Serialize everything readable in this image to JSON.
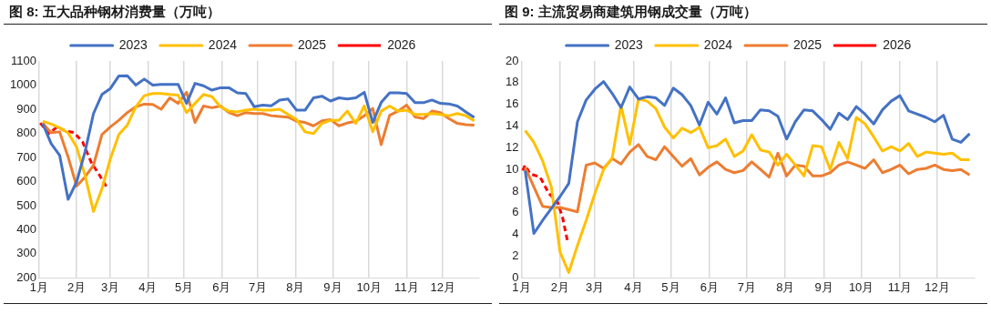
{
  "chart_data": [
    {
      "type": "line",
      "title": "图 8:  五大品种钢材消费量（万吨）",
      "x": [
        "--01-04",
        "--01-11",
        "--01-18",
        "--01-25",
        "--02-01",
        "--02-08",
        "--02-15",
        "--02-22",
        "--03-01",
        "--03-08",
        "--03-15",
        "--03-22",
        "--03-29",
        "--04-05",
        "--04-12",
        "--04-19",
        "--04-26",
        "--05-03",
        "--05-10",
        "--05-17",
        "--05-24",
        "--05-31",
        "--06-07",
        "--06-14",
        "--06-21",
        "--06-28",
        "--07-05",
        "--07-12",
        "--07-19",
        "--07-26",
        "--08-02",
        "--08-09",
        "--08-16",
        "--08-23",
        "--08-30",
        "--09-06",
        "--09-13",
        "--09-20",
        "--09-27",
        "--10-04",
        "--10-11",
        "--10-18",
        "--10-25",
        "--11-01",
        "--11-08",
        "--11-15",
        "--11-22",
        "--11-29",
        "--12-06",
        "--12-13",
        "--12-20",
        "--12-27"
      ],
      "series": [
        {
          "name": "2023",
          "color": "#4472c4",
          "values": [
            840,
            757,
            709,
            526,
            598,
            723,
            882,
            961,
            986,
            1038,
            1039,
            1000,
            1025,
            1000,
            1003,
            1003,
            1003,
            924,
            1007,
            997,
            979,
            989,
            989,
            968,
            965,
            910,
            917,
            914,
            938,
            942,
            896,
            896,
            947,
            954,
            934,
            947,
            942,
            947,
            970,
            845,
            928,
            968,
            968,
            965,
            927,
            927,
            938,
            924,
            922,
            913,
            889,
            866
          ]
        },
        {
          "name": "2024",
          "color": "#ffc000",
          "values": [
            850,
            838,
            823,
            802,
            743,
            626,
            476,
            570,
            695,
            795,
            834,
            910,
            956,
            965,
            965,
            961,
            958,
            886,
            924,
            961,
            952,
            910,
            892,
            889,
            896,
            900,
            896,
            896,
            900,
            878,
            857,
            806,
            799,
            841,
            854,
            854,
            892,
            841,
            914,
            806,
            892,
            913,
            892,
            896,
            878,
            878,
            882,
            878,
            873,
            882,
            873,
            852
          ]
        },
        {
          "name": "2025",
          "color": "#ed7d31",
          "values": [
            841,
            803,
            806,
            702,
            581,
            619,
            667,
            795,
            827,
            854,
            886,
            910,
            921,
            920,
            900,
            947,
            924,
            970,
            845,
            913,
            906,
            913,
            886,
            873,
            886,
            882,
            882,
            873,
            870,
            867,
            850,
            845,
            831,
            852,
            857,
            831,
            843,
            850,
            873,
            903,
            753,
            875,
            892,
            917,
            868,
            861,
            892,
            886,
            861,
            841,
            836,
            834
          ]
        },
        {
          "name": "2026",
          "color": "#ff0000",
          "line_style": "dashed",
          "x": [
            "--01-02",
            "--01-09",
            "--01-16",
            "--01-23",
            "--01-30",
            "--02-06",
            "--02-13",
            "--02-20",
            "--02-27"
          ],
          "values": [
            843,
            799,
            827,
            809,
            803,
            764,
            681,
            626,
            567
          ]
        }
      ],
      "xlim": [
        "--01-01",
        "--12-31"
      ],
      "xticks": [
        {
          "value": "--01-01",
          "label": "1月"
        },
        {
          "value": "--02-01",
          "label": "2月"
        },
        {
          "value": "--03-01",
          "label": "3月"
        },
        {
          "value": "--04-01",
          "label": "4月"
        },
        {
          "value": "--05-01",
          "label": "5月"
        },
        {
          "value": "--06-01",
          "label": "6月"
        },
        {
          "value": "--07-01",
          "label": "7月"
        },
        {
          "value": "--08-01",
          "label": "8月"
        },
        {
          "value": "--09-01",
          "label": "9月"
        },
        {
          "value": "--10-01",
          "label": "10月"
        },
        {
          "value": "--11-01",
          "label": "11月"
        },
        {
          "value": "--12-01",
          "label": "12月"
        }
      ],
      "ylim": [
        200,
        1100
      ],
      "yticks": [
        200,
        300,
        400,
        500,
        600,
        700,
        800,
        900,
        1000,
        1100
      ],
      "grid": "x",
      "legend": "top",
      "marker": "none",
      "line_style": "solid"
    },
    {
      "type": "line",
      "title": "图 9:  主流贸易商建筑用钢成交量（万吨）",
      "x": [
        "--01-04",
        "--01-11",
        "--01-18",
        "--01-25",
        "--02-01",
        "--02-08",
        "--02-15",
        "--02-22",
        "--03-01",
        "--03-08",
        "--03-15",
        "--03-22",
        "--03-29",
        "--04-05",
        "--04-12",
        "--04-19",
        "--04-26",
        "--05-03",
        "--05-10",
        "--05-17",
        "--05-24",
        "--05-31",
        "--06-07",
        "--06-14",
        "--06-21",
        "--06-28",
        "--07-05",
        "--07-12",
        "--07-19",
        "--07-26",
        "--08-02",
        "--08-09",
        "--08-16",
        "--08-23",
        "--08-30",
        "--09-06",
        "--09-13",
        "--09-20",
        "--09-27",
        "--10-04",
        "--10-11",
        "--10-18",
        "--10-25",
        "--11-01",
        "--11-08",
        "--11-15",
        "--11-22",
        "--11-29",
        "--12-06",
        "--12-13",
        "--12-20",
        "--12-27"
      ],
      "series": [
        {
          "name": "2023",
          "color": "#4472c4",
          "values": [
            9.9,
            4.1,
            5.3,
            6.4,
            7.5,
            8.7,
            14.4,
            16.4,
            17.4,
            18.1,
            17.0,
            15.7,
            17.6,
            16.5,
            16.7,
            16.6,
            15.9,
            17.5,
            16.9,
            15.9,
            14.1,
            16.2,
            15.1,
            16.6,
            14.3,
            14.5,
            14.5,
            15.5,
            15.4,
            14.9,
            12.8,
            14.4,
            15.5,
            15.4,
            14.6,
            13.7,
            15.2,
            14.6,
            15.8,
            15.1,
            14.2,
            15.5,
            16.3,
            16.8,
            15.4,
            15.1,
            14.8,
            14.4,
            15.0,
            12.8,
            12.5,
            13.3
          ]
        },
        {
          "name": "2024",
          "color": "#ffc000",
          "values": [
            13.6,
            12.5,
            10.8,
            8.4,
            2.4,
            0.5,
            3.0,
            5.3,
            7.8,
            10.0,
            11.1,
            15.9,
            12.3,
            16.5,
            16.3,
            15.6,
            13.9,
            12.9,
            13.8,
            13.4,
            13.9,
            12.0,
            12.2,
            12.8,
            11.2,
            11.7,
            13.2,
            11.8,
            11.6,
            10.4,
            11.4,
            10.4,
            9.4,
            12.2,
            12.1,
            10.0,
            12.5,
            11.0,
            14.8,
            14.2,
            13.0,
            11.7,
            12.1,
            11.7,
            12.4,
            11.2,
            11.6,
            11.5,
            11.4,
            11.5,
            10.9,
            10.9
          ]
        },
        {
          "name": "2025",
          "color": "#ed7d31",
          "values": [
            10.2,
            8.4,
            6.6,
            6.5,
            6.5,
            6.3,
            6.1,
            10.4,
            10.6,
            10.1,
            11.0,
            10.5,
            11.6,
            12.3,
            11.2,
            10.9,
            12.1,
            11.2,
            10.3,
            11.0,
            9.5,
            10.2,
            10.7,
            10.0,
            9.7,
            9.9,
            10.7,
            10.0,
            9.3,
            11.5,
            9.4,
            10.4,
            10.3,
            9.4,
            9.4,
            9.7,
            10.4,
            10.7,
            10.4,
            10.1,
            10.9,
            9.7,
            10.0,
            10.4,
            9.6,
            10.0,
            10.1,
            10.4,
            10.0,
            9.9,
            10.0,
            9.5
          ]
        },
        {
          "name": "2026",
          "color": "#ff0000",
          "line_style": "dashed",
          "x": [
            "--01-02",
            "--01-04",
            "--01-08",
            "--01-16",
            "--01-23",
            "--01-30",
            "--02-03",
            "--02-07"
          ],
          "values": [
            9.9,
            10.4,
            9.6,
            9.3,
            7.8,
            7.0,
            5.6,
            3.4
          ]
        }
      ],
      "xlim": [
        "--01-01",
        "--12-31"
      ],
      "xticks": [
        {
          "value": "--01-01",
          "label": "1月"
        },
        {
          "value": "--02-01",
          "label": "2月"
        },
        {
          "value": "--03-01",
          "label": "3月"
        },
        {
          "value": "--04-01",
          "label": "4月"
        },
        {
          "value": "--05-01",
          "label": "5月"
        },
        {
          "value": "--06-01",
          "label": "6月"
        },
        {
          "value": "--07-01",
          "label": "7月"
        },
        {
          "value": "--08-01",
          "label": "8月"
        },
        {
          "value": "--09-01",
          "label": "9月"
        },
        {
          "value": "--10-01",
          "label": "10月"
        },
        {
          "value": "--11-01",
          "label": "11月"
        },
        {
          "value": "--12-01",
          "label": "12月"
        }
      ],
      "ylim": [
        0,
        20
      ],
      "yticks": [
        0,
        2,
        4,
        6,
        8,
        10,
        12,
        14,
        16,
        18,
        20
      ],
      "grid": "x",
      "legend": "top",
      "marker": "none",
      "line_style": "solid"
    }
  ]
}
